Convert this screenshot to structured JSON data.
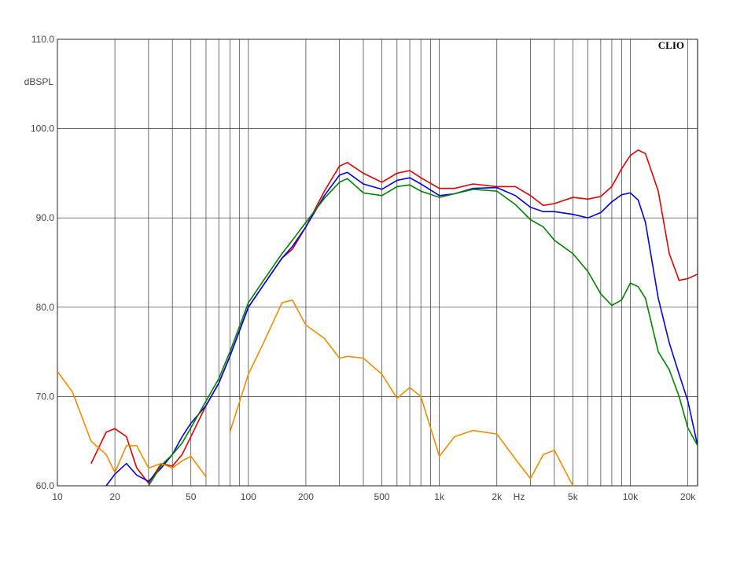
{
  "chart_data": {
    "type": "line",
    "brand": "CLIO",
    "y_label": "dBSPL",
    "x_unit": "Hz",
    "xscale": "log",
    "grid": true,
    "xlim": [
      10,
      22500
    ],
    "ylim": [
      60,
      110
    ],
    "xticks": [
      10,
      20,
      50,
      100,
      200,
      500,
      {
        "value": 1000,
        "label": "1k"
      },
      {
        "value": 2000,
        "label": "2k"
      },
      {
        "value": 5000,
        "label": "5k"
      },
      {
        "value": 10000,
        "label": "10k"
      },
      {
        "value": 20000,
        "label": "20k"
      }
    ],
    "xgrid_minor": [
      30,
      40,
      60,
      70,
      80,
      90,
      300,
      400,
      600,
      700,
      800,
      900,
      3000,
      4000,
      6000,
      7000,
      8000,
      9000
    ],
    "yticks": [
      {
        "value": 60,
        "label": "60.0"
      },
      {
        "value": 70,
        "label": "70.0"
      },
      {
        "value": 80,
        "label": "80.0"
      },
      {
        "value": 90,
        "label": "90.0"
      },
      {
        "value": 100,
        "label": "100.0"
      },
      {
        "value": 110,
        "label": "110.0"
      }
    ],
    "x": [
      10,
      12,
      15,
      18,
      20,
      23,
      26,
      30,
      35,
      40,
      45,
      50,
      60,
      70,
      80,
      100,
      120,
      150,
      170,
      200,
      250,
      300,
      330,
      400,
      500,
      600,
      700,
      800,
      1000,
      1200,
      1500,
      2000,
      2500,
      3000,
      3500,
      4000,
      5000,
      6000,
      7000,
      8000,
      9000,
      10000,
      11000,
      12000,
      14000,
      16000,
      18000,
      20000,
      22500
    ],
    "series": [
      {
        "color": "#e00000",
        "values": [
          null,
          null,
          62.5,
          66,
          66.4,
          65.5,
          62,
          60.3,
          62.5,
          62.2,
          63.5,
          65.5,
          69,
          71.5,
          74.5,
          80,
          82.5,
          85.5,
          86.5,
          89,
          93,
          95.8,
          96.2,
          95,
          94,
          95,
          95.3,
          94.5,
          93.3,
          93.3,
          93.8,
          93.5,
          93.5,
          92.5,
          91.4,
          91.6,
          92.3,
          92.1,
          92.4,
          93.5,
          95.5,
          97,
          97.6,
          97.2,
          93,
          86,
          83,
          83.2,
          83.7
        ]
      },
      {
        "color": "#0000e0",
        "values": [
          null,
          null,
          null,
          60,
          61.3,
          62.5,
          61.2,
          60.5,
          62,
          63.5,
          65.5,
          67,
          69,
          71.5,
          74.5,
          80,
          82.5,
          85.5,
          86.8,
          89,
          92.5,
          94.8,
          95.1,
          93.8,
          93.2,
          94.2,
          94.5,
          93.8,
          92.5,
          92.7,
          93.3,
          93.4,
          92.5,
          91.2,
          90.7,
          90.7,
          90.4,
          90,
          90.6,
          91.8,
          92.6,
          92.8,
          92,
          89.5,
          81,
          76,
          72.5,
          69.5,
          64.5
        ]
      },
      {
        "color": "#008000",
        "values": [
          null,
          null,
          null,
          null,
          null,
          null,
          null,
          60,
          62.3,
          63.5,
          64.8,
          66.5,
          69.5,
          72,
          75,
          80.5,
          83,
          86,
          87.5,
          89.5,
          92.2,
          94,
          94.4,
          92.8,
          92.5,
          93.5,
          93.7,
          93,
          92.3,
          92.7,
          93.2,
          93,
          91.5,
          89.8,
          89,
          87.5,
          86,
          84,
          81.5,
          80.2,
          80.8,
          82.7,
          82.3,
          81,
          75,
          73,
          70,
          66.5,
          64.5
        ]
      },
      {
        "color": "#f08c00",
        "values": [
          72.8,
          70.5,
          65,
          63.5,
          61.5,
          64.5,
          64.5,
          62,
          62.5,
          62,
          62.8,
          63.3,
          61,
          null,
          66,
          72.5,
          76,
          80.5,
          80.8,
          78,
          76.5,
          74.3,
          74.5,
          74.3,
          72.5,
          69.8,
          71,
          70,
          63.3,
          65.5,
          66.2,
          65.8,
          63,
          60.8,
          63.5,
          64,
          60,
          null,
          null,
          null,
          null,
          null,
          null,
          null,
          null,
          null,
          null,
          null,
          null
        ]
      }
    ]
  }
}
